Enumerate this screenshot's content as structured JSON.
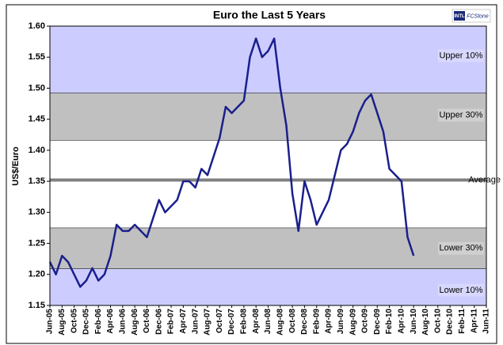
{
  "chart_data": {
    "type": "line",
    "title": "Euro the Last 5 Years",
    "y_label": "US$/Euro",
    "logo": {
      "mark": "INTL",
      "text": "FCStone"
    },
    "categories": [
      "Jun-05",
      null,
      "Aug-05",
      null,
      "Oct-05",
      null,
      "Dec-05",
      null,
      "Feb-06",
      null,
      "Apr-06",
      null,
      "Jun-06",
      null,
      "Aug-06",
      null,
      "Oct-06",
      null,
      "Dec-06",
      null,
      "Feb-07",
      null,
      "Apr-07",
      null,
      "Jun-07",
      null,
      "Aug-07",
      null,
      "Oct-07",
      null,
      "Dec-07",
      null,
      "Feb-08",
      null,
      "Apr-08",
      null,
      "Jun-08",
      null,
      "Aug-08",
      null,
      "Oct-08",
      null,
      "Dec-08",
      null,
      "Feb-09",
      null,
      "Apr-09",
      null,
      "Jun-09",
      null,
      "Aug-09",
      null,
      "Oct-09",
      null,
      "Dec-09",
      null,
      "Feb-10",
      null,
      "Apr-10",
      null,
      "Jun-10",
      null,
      "Aug-10",
      null,
      "Oct-10",
      null,
      "Dec-10",
      null,
      "Feb-11",
      null,
      "Apr-11",
      null,
      "Jun-11"
    ],
    "series": [
      {
        "name": "Euro",
        "color": "#1a1f8c",
        "values": [
          1.22,
          1.2,
          1.23,
          1.22,
          1.2,
          1.18,
          1.19,
          1.21,
          1.19,
          1.2,
          1.23,
          1.28,
          1.27,
          1.27,
          1.28,
          1.27,
          1.26,
          1.29,
          1.32,
          1.3,
          1.31,
          1.32,
          1.35,
          1.35,
          1.34,
          1.37,
          1.36,
          1.39,
          1.42,
          1.47,
          1.46,
          1.47,
          1.48,
          1.55,
          1.58,
          1.55,
          1.56,
          1.58,
          1.5,
          1.44,
          1.33,
          1.27,
          1.35,
          1.32,
          1.28,
          1.3,
          1.32,
          1.36,
          1.4,
          1.41,
          1.43,
          1.46,
          1.48,
          1.49,
          1.46,
          1.43,
          1.37,
          1.36,
          1.35,
          1.26,
          1.23,
          null,
          null,
          null,
          null,
          null,
          null,
          null,
          null,
          null,
          null,
          null,
          null
        ]
      }
    ],
    "bands": [
      {
        "name": "Upper 10%",
        "from": 1.492,
        "to": 1.6,
        "color": "#ccccff"
      },
      {
        "name": "Upper 30%",
        "from": 1.416,
        "to": 1.492,
        "color": "#c0c0c0"
      },
      {
        "name": "Lower 30%",
        "from": 1.209,
        "to": 1.275,
        "color": "#c0c0c0"
      },
      {
        "name": "Lower 10%",
        "from": 1.15,
        "to": 1.209,
        "color": "#ccccff"
      }
    ],
    "average": {
      "label": "Average",
      "value": 1.352,
      "color": "#808080"
    },
    "ylim": [
      1.15,
      1.6
    ],
    "yticks": [
      {
        "value": 1.15,
        "label": "1.15"
      },
      {
        "value": 1.2,
        "label": "1.20"
      },
      {
        "value": 1.25,
        "label": "1.25"
      },
      {
        "value": 1.3,
        "label": "1.30"
      },
      {
        "value": 1.35,
        "label": "1.35"
      },
      {
        "value": 1.4,
        "label": "1.40"
      },
      {
        "value": 1.45,
        "label": "1.45"
      },
      {
        "value": 1.5,
        "label": "1.50"
      },
      {
        "value": 1.55,
        "label": "1.55"
      },
      {
        "value": 1.6,
        "label": "1.60"
      }
    ]
  }
}
